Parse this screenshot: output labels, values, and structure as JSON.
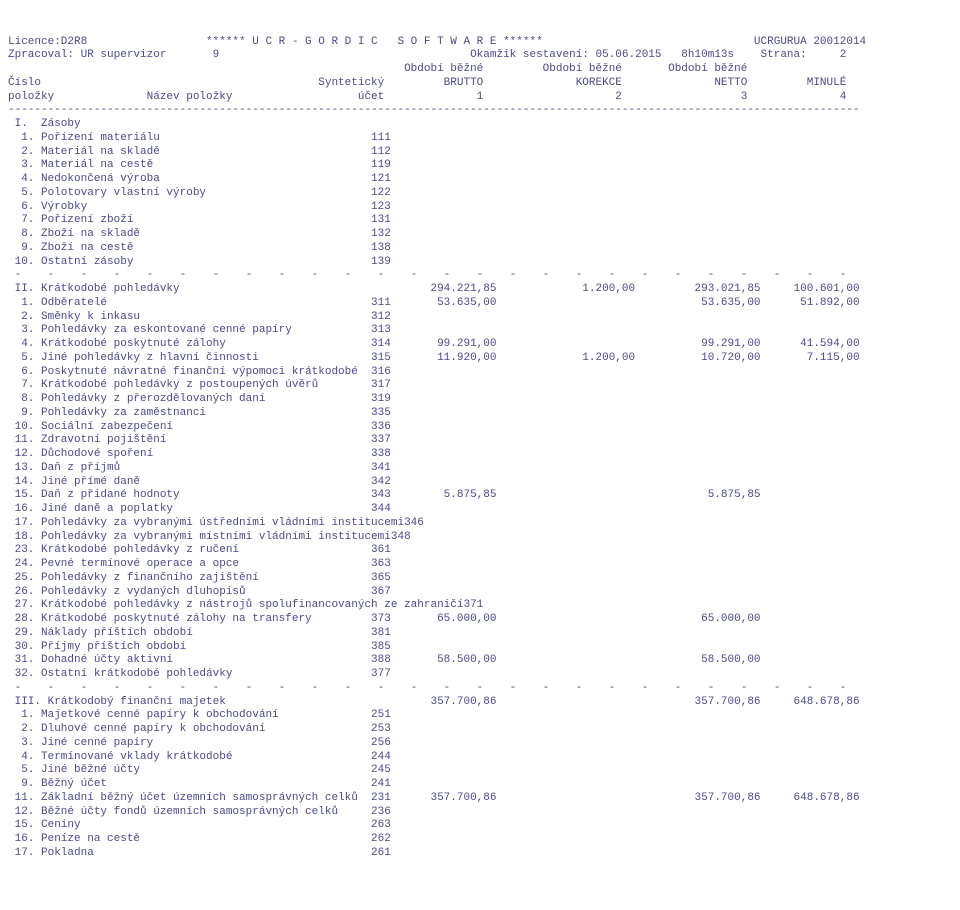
{
  "header": {
    "licence": "Licence:D2R8",
    "software": "****** U C R - G O R D I C   S O F T W A R E ******",
    "ucrgurua": "UCRGURUA 20012014",
    "zpracoval": "Zpracoval: UR supervizor       9",
    "okamzik": "Okamžik sestavení: 05.06.2015   8h10m13s    Strana:     2",
    "period_header": "                                                            Období běžné         Období běžné       Období běžné",
    "col_header1": "Číslo                                          Syntetický         BRUTTO              KOREKCE              NETTO         MINULÉ",
    "col_header2": "položky              Název položky                   účet              1                    2                  3              4"
  },
  "sections": [
    {
      "label": " I.  Zásoby"
    },
    {
      "label": "  1. Pořízení materiálu",
      "acct": "111"
    },
    {
      "label": "  2. Materiál na skladě",
      "acct": "112"
    },
    {
      "label": "  3. Materiál na cestě",
      "acct": "119"
    },
    {
      "label": "  4. Nedokončená výroba",
      "acct": "121"
    },
    {
      "label": "  5. Polotovary vlastní výroby",
      "acct": "122"
    },
    {
      "label": "  6. Výrobky",
      "acct": "123"
    },
    {
      "label": "  7. Pořízení zboží",
      "acct": "131"
    },
    {
      "label": "  8. Zboží na skladě",
      "acct": "132"
    },
    {
      "label": "  9. Zboží na cestě",
      "acct": "138"
    },
    {
      "label": " 10. Ostatní zásoby",
      "acct": "139"
    }
  ],
  "dashrow": " -    -    -    -    -    -    -    -    -    -    -    -    -    -    -    -    -    -    -    -    -    -    -    -    -    -",
  "sec2": {
    "label": " II. Krátkodobé pohledávky",
    "c1": "294.221,85",
    "c2": "1.200,00",
    "c3": "293.021,85",
    "c4": "100.601,00"
  },
  "rows2": [
    {
      "label": "  1. Odběratelé",
      "acct": "311",
      "c1": "53.635,00",
      "c3": "53.635,00",
      "c4": "51.892,00"
    },
    {
      "label": "  2. Směnky k inkasu",
      "acct": "312"
    },
    {
      "label": "  3. Pohledávky za eskontované cenné papíry",
      "acct": "313"
    },
    {
      "label": "  4. Krátkodobé poskytnuté zálohy",
      "acct": "314",
      "c1": "99.291,00",
      "c3": "99.291,00",
      "c4": "41.594,00"
    },
    {
      "label": "  5. Jiné pohledávky z hlavní činnosti",
      "acct": "315",
      "c1": "11.920,00",
      "c2": "1.200,00",
      "c3": "10.720,00",
      "c4": "7.115,00"
    },
    {
      "label": "  6. Poskytnuté návratné finanční výpomoci krátkodobé",
      "acct": "316"
    },
    {
      "label": "  7. Krátkodobé pohledávky z postoupených úvěrů",
      "acct": "317"
    },
    {
      "label": "  8. Pohledávky z přerozdělovaných daní",
      "acct": "319"
    },
    {
      "label": "  9. Pohledávky za zaměstnanci",
      "acct": "335"
    },
    {
      "label": " 10. Sociální zabezpečení",
      "acct": "336"
    },
    {
      "label": " 11. Zdravotní pojištění",
      "acct": "337"
    },
    {
      "label": " 12. Důchodové spoření",
      "acct": "338"
    },
    {
      "label": " 13. Daň z příjmů",
      "acct": "341"
    },
    {
      "label": " 14. Jiné přímé daně",
      "acct": "342"
    },
    {
      "label": " 15. Daň z přidané hodnoty",
      "acct": "343",
      "c1": "5.875,85",
      "c3": "5.875,85"
    },
    {
      "label": " 16. Jiné daně a poplatky",
      "acct": "344"
    },
    {
      "label": " 17. Pohledávky za vybranými ústředními vládními institucemi",
      "acct": "346"
    },
    {
      "label": " 18. Pohledávky za vybranými místními vládními institucemi",
      "acct": "348"
    },
    {
      "label": " 23. Krátkodobé pohledávky z ručení",
      "acct": "361"
    },
    {
      "label": " 24. Pevné termínové operace a opce",
      "acct": "363"
    },
    {
      "label": " 25. Pohledávky z finančního zajištění",
      "acct": "365"
    },
    {
      "label": " 26. Pohledávky z vydaných dluhopisů",
      "acct": "367"
    },
    {
      "label": " 27. Krátkodobé pohledávky z nástrojů spolufinancovaných ze zahraničí",
      "acct": "371"
    },
    {
      "label": " 28. Krátkodobé poskytnuté zálohy na transfery",
      "acct": "373",
      "c1": "65.000,00",
      "c3": "65.000,00"
    },
    {
      "label": " 29. Náklady příštích období",
      "acct": "381"
    },
    {
      "label": " 30. Příjmy příštích období",
      "acct": "385"
    },
    {
      "label": " 31. Dohadné účty aktivní",
      "acct": "388",
      "c1": "58.500,00",
      "c3": "58.500,00"
    },
    {
      "label": " 32. Ostatní krátkodobé pohledávky",
      "acct": "377"
    }
  ],
  "sec3": {
    "label": " III. Krátkodobý finanční majetek",
    "c1": "357.700,86",
    "c3": "357.700,86",
    "c4": "648.678,86"
  },
  "rows3": [
    {
      "label": "  1. Majetkové cenné papíry k obchodování",
      "acct": "251"
    },
    {
      "label": "  2. Dluhové cenné papíry k obchodování",
      "acct": "253"
    },
    {
      "label": "  3. Jiné cenné papíry",
      "acct": "256"
    },
    {
      "label": "  4. Termínované vklady krátkodobé",
      "acct": "244"
    },
    {
      "label": "  5. Jiné běžné účty",
      "acct": "245"
    },
    {
      "label": "  9. Běžný účet",
      "acct": "241"
    },
    {
      "label": " 11. Základní běžný účet územních samosprávných celků",
      "acct": "231",
      "c1": "357.700,86",
      "c3": "357.700,86",
      "c4": "648.678,86"
    },
    {
      "label": " 12. Běžné účty fondů územních samosprávných celků",
      "acct": "236"
    },
    {
      "label": " 15. Ceniny",
      "acct": "263"
    },
    {
      "label": " 16. Peníze na cestě",
      "acct": "262"
    },
    {
      "label": " 17. Pokladna",
      "acct": "261"
    }
  ],
  "layout": {
    "label_w": 55,
    "acct_w": 4,
    "c1_w": 15,
    "c2_w": 21,
    "c3_w": 19,
    "c4_w": 15,
    "hr": "---------------------------------------------------------------------------------------------------------------------------------"
  }
}
